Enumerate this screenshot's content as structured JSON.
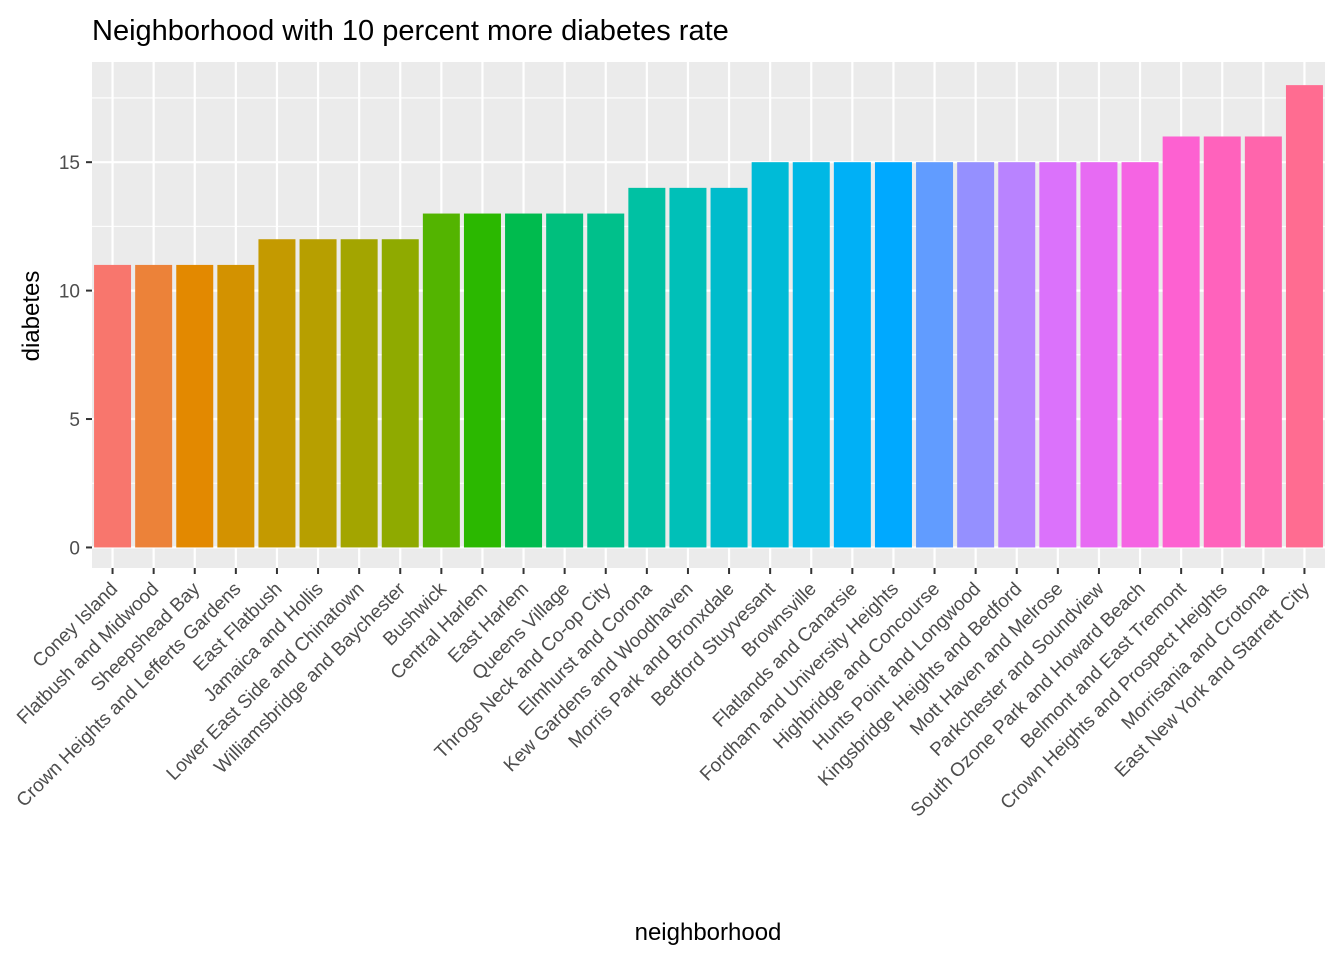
{
  "chart_data": {
    "type": "bar",
    "title": "Neighborhood with 10 percent more diabetes rate",
    "xlabel": "neighborhood",
    "ylabel": "diabetes",
    "ylim": [
      -0.8,
      18.9
    ],
    "yticks": [
      0,
      5,
      10,
      15
    ],
    "grid": true,
    "legend": "none",
    "categories": [
      "Coney Island",
      "Flatbush and Midwood",
      "Sheepshead Bay",
      "Crown Heights and Lefferts Gardens",
      "East Flatbush",
      "Jamaica and Hollis",
      "Lower East Side and Chinatown",
      "Williamsbridge and Baychester",
      "Bushwick",
      "Central Harlem",
      "East Harlem",
      "Queens Village",
      "Throgs Neck and Co-op City",
      "Elmhurst and Corona",
      "Kew Gardens and Woodhaven",
      "Morris Park and Bronxdale",
      "Bedford Stuyvesant",
      "Brownsville",
      "Flatlands and Canarsie",
      "Fordham and University Heights",
      "Highbridge and Concourse",
      "Hunts Point and Longwood",
      "Kingsbridge Heights and Bedford",
      "Mott Haven and Melrose",
      "Parkchester and Soundview",
      "South Ozone Park and Howard Beach",
      "Belmont and East Tremont",
      "Crown Heights and Prospect Heights",
      "Morrisania and Crotona",
      "East New York and Starrett City"
    ],
    "values": [
      11,
      11,
      11,
      11,
      12,
      12,
      12,
      12,
      13,
      13,
      13,
      13,
      13,
      14,
      14,
      14,
      15,
      15,
      15,
      15,
      15,
      15,
      15,
      15,
      15,
      15,
      16,
      16,
      16,
      18
    ],
    "colors": [
      "#F8766D",
      "#EC8239",
      "#E38900",
      "#D39200",
      "#C49A00",
      "#B79F00",
      "#A3A500",
      "#8FAA00",
      "#53B400",
      "#2BB800",
      "#00BB4E",
      "#00BF7D",
      "#00C08B",
      "#00C1A3",
      "#00C0B8",
      "#00BCCC",
      "#00BBD7",
      "#00B8E5",
      "#00B0F6",
      "#00A9FF",
      "#619CFF",
      "#9590FF",
      "#B983FF",
      "#DB72FB",
      "#E76BF3",
      "#F564E3",
      "#FD61D1",
      "#FF62BC",
      "#FF65AC",
      "#FF6C91"
    ],
    "plot_background": "#EBEBEB",
    "grid_color": "#FFFFFF"
  }
}
